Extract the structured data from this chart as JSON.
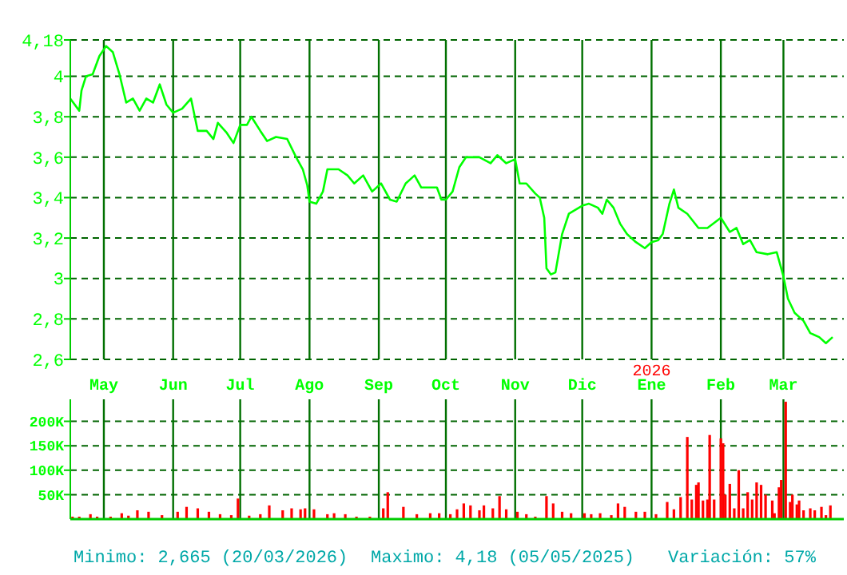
{
  "chart_data": [
    {
      "type": "line",
      "xlim": [
        "2025-04-16",
        "2026-03-28"
      ],
      "ylim": [
        2.6,
        4.18
      ],
      "xticks": [
        {
          "value": "2025-05-01",
          "label": "May"
        },
        {
          "value": "2025-06-01",
          "label": "Jun"
        },
        {
          "value": "2025-07-01",
          "label": "Jul"
        },
        {
          "value": "2025-08-01",
          "label": "Ago"
        },
        {
          "value": "2025-09-01",
          "label": "Sep"
        },
        {
          "value": "2025-10-01",
          "label": "Oct"
        },
        {
          "value": "2025-11-01",
          "label": "Nov"
        },
        {
          "value": "2025-12-01",
          "label": "Dic"
        },
        {
          "value": "2026-01-01",
          "label": "Ene"
        },
        {
          "value": "2026-02-01",
          "label": "Feb"
        },
        {
          "value": "2026-03-01",
          "label": "Mar"
        }
      ],
      "yticks": [
        {
          "value": 2.6,
          "label": "2,6"
        },
        {
          "value": 2.8,
          "label": "2,8"
        },
        3,
        {
          "value": 3.2,
          "label": "3,2"
        },
        {
          "value": 3.4,
          "label": "3,4"
        },
        {
          "value": 3.6,
          "label": "3,6"
        },
        {
          "value": 3.8,
          "label": "3,8"
        },
        4,
        {
          "value": 4.18,
          "label": "4,18"
        }
      ],
      "grid": true,
      "annotations": [
        "2026"
      ],
      "series": [
        {
          "color": "#00ff00",
          "x": [
            "2025-04-16",
            "2025-04-20",
            "2025-04-21",
            "2025-04-23",
            "2025-04-26",
            "2025-04-29",
            "2025-05-02",
            "2025-05-05",
            "2025-05-08",
            "2025-05-11",
            "2025-05-14",
            "2025-05-17",
            "2025-05-20",
            "2025-05-23",
            "2025-05-26",
            "2025-05-29",
            "2025-06-01",
            "2025-06-05",
            "2025-06-09",
            "2025-06-12",
            "2025-06-16",
            "2025-06-19",
            "2025-06-21",
            "2025-06-25",
            "2025-06-28",
            "2025-07-01",
            "2025-07-04",
            "2025-07-06",
            "2025-07-10",
            "2025-07-13",
            "2025-07-17",
            "2025-07-22",
            "2025-07-26",
            "2025-07-29",
            "2025-07-31",
            "2025-08-01",
            "2025-08-04",
            "2025-08-07",
            "2025-08-09",
            "2025-08-14",
            "2025-08-18",
            "2025-08-21",
            "2025-08-25",
            "2025-08-29",
            "2025-09-02",
            "2025-09-06",
            "2025-09-09",
            "2025-09-13",
            "2025-09-17",
            "2025-09-20",
            "2025-09-24",
            "2025-09-27",
            "2025-09-29",
            "2025-10-01",
            "2025-10-04",
            "2025-10-07",
            "2025-10-10",
            "2025-10-16",
            "2025-10-21",
            "2025-10-24",
            "2025-10-28",
            "2025-11-01",
            "2025-11-03",
            "2025-11-06",
            "2025-11-10",
            "2025-11-12",
            "2025-11-14",
            "2025-11-15",
            "2025-11-17",
            "2025-11-19",
            "2025-11-22",
            "2025-11-25",
            "2025-12-01",
            "2025-12-04",
            "2025-12-08",
            "2025-12-10",
            "2025-12-12",
            "2025-12-15",
            "2025-12-18",
            "2025-12-21",
            "2025-12-25",
            "2025-12-29",
            "2026-01-01",
            "2026-01-04",
            "2026-01-06",
            "2026-01-09",
            "2026-01-11",
            "2026-01-13",
            "2026-01-17",
            "2026-01-22",
            "2026-01-26",
            "2026-02-01",
            "2026-02-05",
            "2026-02-08",
            "2026-02-11",
            "2026-02-14",
            "2026-02-17",
            "2026-02-22",
            "2026-02-26",
            "2026-03-01",
            "2026-03-03",
            "2026-03-06",
            "2026-03-10",
            "2026-03-13",
            "2026-03-17",
            "2026-03-20",
            "2026-03-23"
          ],
          "values": [
            3.89,
            3.83,
            3.93,
            4.0,
            4.01,
            4.1,
            4.15,
            4.12,
            4.01,
            3.87,
            3.89,
            3.83,
            3.89,
            3.87,
            3.96,
            3.86,
            3.82,
            3.84,
            3.89,
            3.73,
            3.73,
            3.69,
            3.77,
            3.72,
            3.67,
            3.76,
            3.76,
            3.8,
            3.73,
            3.68,
            3.7,
            3.69,
            3.6,
            3.54,
            3.46,
            3.38,
            3.37,
            3.43,
            3.54,
            3.54,
            3.51,
            3.47,
            3.51,
            3.43,
            3.47,
            3.39,
            3.38,
            3.47,
            3.51,
            3.45,
            3.45,
            3.45,
            3.39,
            3.39,
            3.43,
            3.55,
            3.6,
            3.6,
            3.57,
            3.61,
            3.57,
            3.59,
            3.47,
            3.47,
            3.42,
            3.4,
            3.3,
            3.05,
            3.02,
            3.03,
            3.22,
            3.32,
            3.36,
            3.37,
            3.35,
            3.32,
            3.39,
            3.35,
            3.27,
            3.22,
            3.18,
            3.15,
            3.18,
            3.19,
            3.22,
            3.37,
            3.44,
            3.35,
            3.32,
            3.25,
            3.25,
            3.3,
            3.23,
            3.25,
            3.17,
            3.19,
            3.13,
            3.12,
            3.13,
            3.01,
            2.9,
            2.83,
            2.79,
            2.73,
            2.71,
            2.68,
            2.71
          ]
        }
      ]
    },
    {
      "type": "bar",
      "xlim": [
        "2025-04-16",
        "2026-03-28"
      ],
      "ylim": [
        0,
        245000
      ],
      "tick_labels": "y",
      "grid": true,
      "xticks": [
        "2025-05-01",
        "2025-06-01",
        "2025-07-01",
        "2025-08-01",
        "2025-09-01",
        "2025-10-01",
        "2025-11-01",
        "2025-12-01",
        "2026-01-01",
        "2026-02-01",
        "2026-03-01"
      ],
      "yticks": [
        {
          "value": 50000,
          "label": "50K"
        },
        {
          "value": 100000,
          "label": "100K"
        },
        {
          "value": 150000,
          "label": "150K"
        },
        {
          "value": 200000,
          "label": "200K"
        }
      ],
      "annotations": [
        "Minimo: 2,665 (20/03/2026)",
        "Maximo: 4,18 (05/05/2025)",
        "Variación: 57%"
      ],
      "series": [
        {
          "color": "#ff0000",
          "x": [
            "2025-04-17",
            "2025-04-20",
            "2025-04-25",
            "2025-04-28",
            "2025-05-04",
            "2025-05-09",
            "2025-05-12",
            "2025-05-16",
            "2025-05-21",
            "2025-05-27",
            "2025-06-03",
            "2025-06-07",
            "2025-06-12",
            "2025-06-17",
            "2025-06-22",
            "2025-06-27",
            "2025-06-30",
            "2025-07-05",
            "2025-07-10",
            "2025-07-14",
            "2025-07-20",
            "2025-07-24",
            "2025-07-28",
            "2025-07-30",
            "2025-08-03",
            "2025-08-09",
            "2025-08-12",
            "2025-08-17",
            "2025-08-22",
            "2025-08-28",
            "2025-09-03",
            "2025-09-05",
            "2025-09-12",
            "2025-09-18",
            "2025-09-24",
            "2025-09-28",
            "2025-10-03",
            "2025-10-06",
            "2025-10-09",
            "2025-10-12",
            "2025-10-16",
            "2025-10-18",
            "2025-10-22",
            "2025-10-25",
            "2025-10-28",
            "2025-11-02",
            "2025-11-06",
            "2025-11-10",
            "2025-11-15",
            "2025-11-18",
            "2025-11-22",
            "2025-11-26",
            "2025-12-02",
            "2025-12-05",
            "2025-12-09",
            "2025-12-14",
            "2025-12-17",
            "2025-12-20",
            "2025-12-25",
            "2025-12-29",
            "2026-01-03",
            "2026-01-08",
            "2026-01-11",
            "2026-01-14",
            "2026-01-17",
            "2026-01-19",
            "2026-01-21",
            "2026-01-22",
            "2026-01-24",
            "2026-01-26",
            "2026-01-27",
            "2026-01-29",
            "2026-02-01",
            "2026-02-02",
            "2026-02-03",
            "2026-02-05",
            "2026-02-07",
            "2026-02-09",
            "2026-02-11",
            "2026-02-13",
            "2026-02-15",
            "2026-02-17",
            "2026-02-19",
            "2026-02-21",
            "2026-02-24",
            "2026-02-25",
            "2026-02-27",
            "2026-02-28",
            "2026-03-02",
            "2026-03-04",
            "2026-03-05",
            "2026-03-07",
            "2026-03-08",
            "2026-03-10",
            "2026-03-13",
            "2026-03-15",
            "2026-03-18",
            "2026-03-20",
            "2026-03-22"
          ],
          "values": [
            5000,
            5000,
            10000,
            5000,
            5000,
            12000,
            7000,
            18000,
            15000,
            8000,
            15000,
            25000,
            22000,
            15000,
            10000,
            8000,
            42000,
            7000,
            10000,
            28000,
            18000,
            22000,
            20000,
            22000,
            20000,
            10000,
            12000,
            10000,
            5000,
            5000,
            22000,
            55000,
            25000,
            10000,
            12000,
            12000,
            10000,
            20000,
            32000,
            28000,
            18000,
            28000,
            22000,
            47000,
            20000,
            15000,
            10000,
            5000,
            47000,
            32000,
            15000,
            12000,
            12000,
            10000,
            12000,
            8000,
            32000,
            25000,
            15000,
            15000,
            10000,
            35000,
            20000,
            45000,
            168000,
            40000,
            70000,
            75000,
            38000,
            40000,
            172000,
            40000,
            165000,
            155000,
            50000,
            72000,
            22000,
            100000,
            22000,
            55000,
            40000,
            75000,
            70000,
            50000,
            38000,
            12000,
            65000,
            80000,
            240000,
            35000,
            50000,
            30000,
            38000,
            18000,
            22000,
            18000,
            25000,
            8000,
            28000
          ]
        }
      ]
    }
  ]
}
